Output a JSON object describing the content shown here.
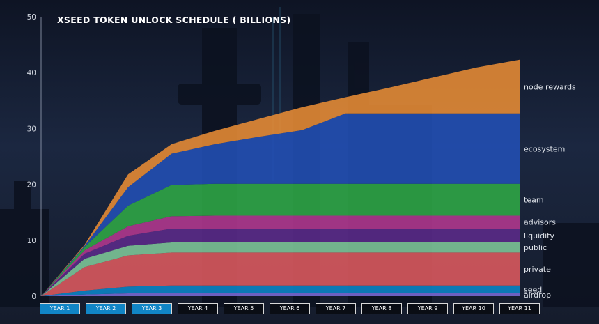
{
  "title": "XSEED TOKEN UNLOCK SCHEDULE ( BILLIONS)",
  "colors": {
    "airdrop": "#7a6bd6",
    "seed": "#0b86c8",
    "private": "#de5a5e",
    "public": "#7fc89a",
    "liquidity": "#5b2a8a",
    "advisors": "#b3388f",
    "team": "#2fa845",
    "ecosystem": "#2250b5",
    "node rewards": "#e88c34"
  },
  "year_buttons": [
    {
      "label": "YEAR 1",
      "active": true
    },
    {
      "label": "YEAR 2",
      "active": true
    },
    {
      "label": "YEAR 3",
      "active": true
    },
    {
      "label": "YEAR 4",
      "active": false
    },
    {
      "label": "YEAR 5",
      "active": false
    },
    {
      "label": "YEAR 6",
      "active": false
    },
    {
      "label": "YEAR 7",
      "active": false
    },
    {
      "label": "YEAR 8",
      "active": false
    },
    {
      "label": "YEAR 9",
      "active": false
    },
    {
      "label": "YEAR 10",
      "active": false
    },
    {
      "label": "YEAR 11",
      "active": false
    }
  ],
  "chart_data": {
    "type": "area",
    "title": "XSEED TOKEN UNLOCK SCHEDULE ( BILLIONS)",
    "stacked": true,
    "x": [
      0,
      1,
      2,
      3,
      4,
      5,
      6,
      7,
      8,
      9,
      10,
      11
    ],
    "ylim": [
      0,
      50
    ],
    "yticks": [
      0,
      10,
      20,
      30,
      40,
      50
    ],
    "series": [
      {
        "name": "airdrop",
        "values": [
          0,
          0.3,
          0.5,
          0.5,
          0.5,
          0.5,
          0.5,
          0.5,
          0.5,
          0.5,
          0.5,
          0.5
        ]
      },
      {
        "name": "seed",
        "values": [
          0,
          0.7,
          1.2,
          1.4,
          1.4,
          1.4,
          1.4,
          1.4,
          1.4,
          1.4,
          1.4,
          1.4
        ]
      },
      {
        "name": "private",
        "values": [
          0,
          4.2,
          5.6,
          5.9,
          5.9,
          5.9,
          5.9,
          5.9,
          5.9,
          5.9,
          5.9,
          5.9
        ]
      },
      {
        "name": "public",
        "values": [
          0,
          1.5,
          1.7,
          1.8,
          1.8,
          1.8,
          1.8,
          1.8,
          1.8,
          1.8,
          1.8,
          1.8
        ]
      },
      {
        "name": "liquidity",
        "values": [
          0,
          0.9,
          1.8,
          2.5,
          2.5,
          2.5,
          2.5,
          2.5,
          2.5,
          2.5,
          2.5,
          2.5
        ]
      },
      {
        "name": "advisors",
        "values": [
          0,
          0.6,
          1.7,
          2.2,
          2.3,
          2.3,
          2.3,
          2.3,
          2.3,
          2.3,
          2.3,
          2.3
        ]
      },
      {
        "name": "team",
        "values": [
          0,
          0.6,
          3.7,
          5.6,
          5.7,
          5.7,
          5.7,
          5.7,
          5.7,
          5.7,
          5.7,
          5.7
        ]
      },
      {
        "name": "ecosystem",
        "values": [
          0,
          0.2,
          3.3,
          5.6,
          7.1,
          8.4,
          9.6,
          12.6,
          12.6,
          12.6,
          12.6,
          12.6
        ]
      },
      {
        "name": "node rewards",
        "values": [
          0,
          0.2,
          2.3,
          1.7,
          2.4,
          3.2,
          4.1,
          2.9,
          4.6,
          6.4,
          8.2,
          9.6
        ]
      }
    ]
  }
}
